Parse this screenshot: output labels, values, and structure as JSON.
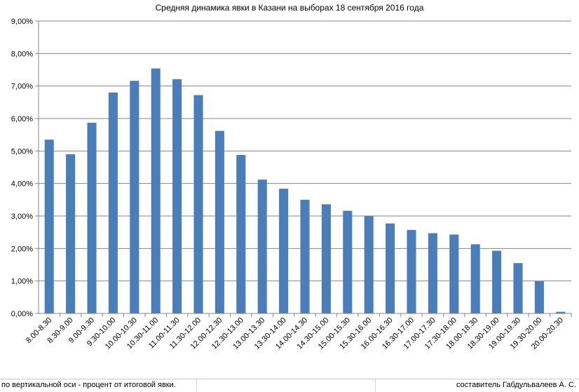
{
  "chart_data": {
    "type": "bar",
    "title": "Средняя динамика явки в Казани на выборах 18 сентября 2016 года",
    "xlabel": "",
    "ylabel": "",
    "ylim": [
      0,
      9
    ],
    "yticks": [
      "0,00%",
      "1,00%",
      "2,00%",
      "3,00%",
      "4,00%",
      "5,00%",
      "6,00%",
      "7,00%",
      "8,00%",
      "9,00%"
    ],
    "grid": true,
    "legend": "none",
    "bar_color": "#4a7ebb",
    "categories": [
      "8.00-8.30",
      "8.30-9.00",
      "9.00-9.30",
      "9.30-10.00",
      "10.00-10.30",
      "10.30-11.00",
      "11.00-11.30",
      "11.30-12.00",
      "12.00-12.30",
      "12.30-13.00",
      "13.00-13.30",
      "13.30-14.00",
      "14.00-14.30",
      "14.30-15.00",
      "15.00-15.30",
      "15.30-16.00",
      "16.00-16.30",
      "16.30-17.00",
      "17.00-17.30",
      "17.30-18.00",
      "18.00-18.30",
      "18.30-19.00",
      "19.00-19.30",
      "19.30-20.00",
      "20.00-20.30"
    ],
    "values": [
      5.35,
      4.9,
      5.87,
      6.8,
      7.16,
      7.54,
      7.21,
      6.72,
      5.62,
      4.88,
      4.12,
      3.84,
      3.5,
      3.36,
      3.16,
      3.0,
      2.77,
      2.57,
      2.47,
      2.43,
      2.13,
      1.93,
      1.55,
      0.99,
      0.05
    ]
  },
  "footer": {
    "note": "по вертикальной оси - процент от итоговой явки.",
    "author": "составитель Габдульвалеев А. С."
  }
}
